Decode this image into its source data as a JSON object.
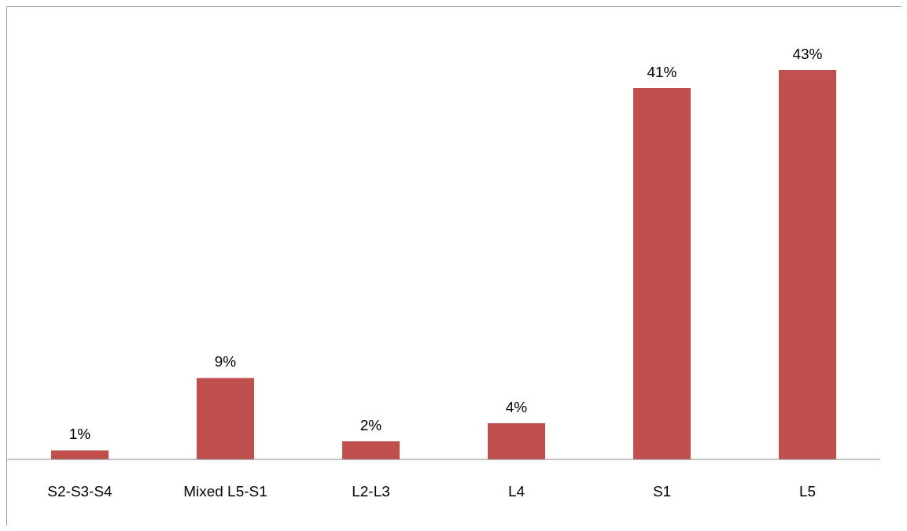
{
  "chart_data": {
    "type": "bar",
    "categories": [
      "S2-S3-S4",
      "Mixed L5-S1",
      "L2-L3",
      "L4",
      "S1",
      "L5"
    ],
    "values": [
      1,
      9,
      2,
      4,
      41,
      43
    ],
    "value_labels": [
      "1%",
      "9%",
      "2%",
      "4%",
      "41%",
      "43%"
    ],
    "color": "#c0504d",
    "grid": false
  }
}
